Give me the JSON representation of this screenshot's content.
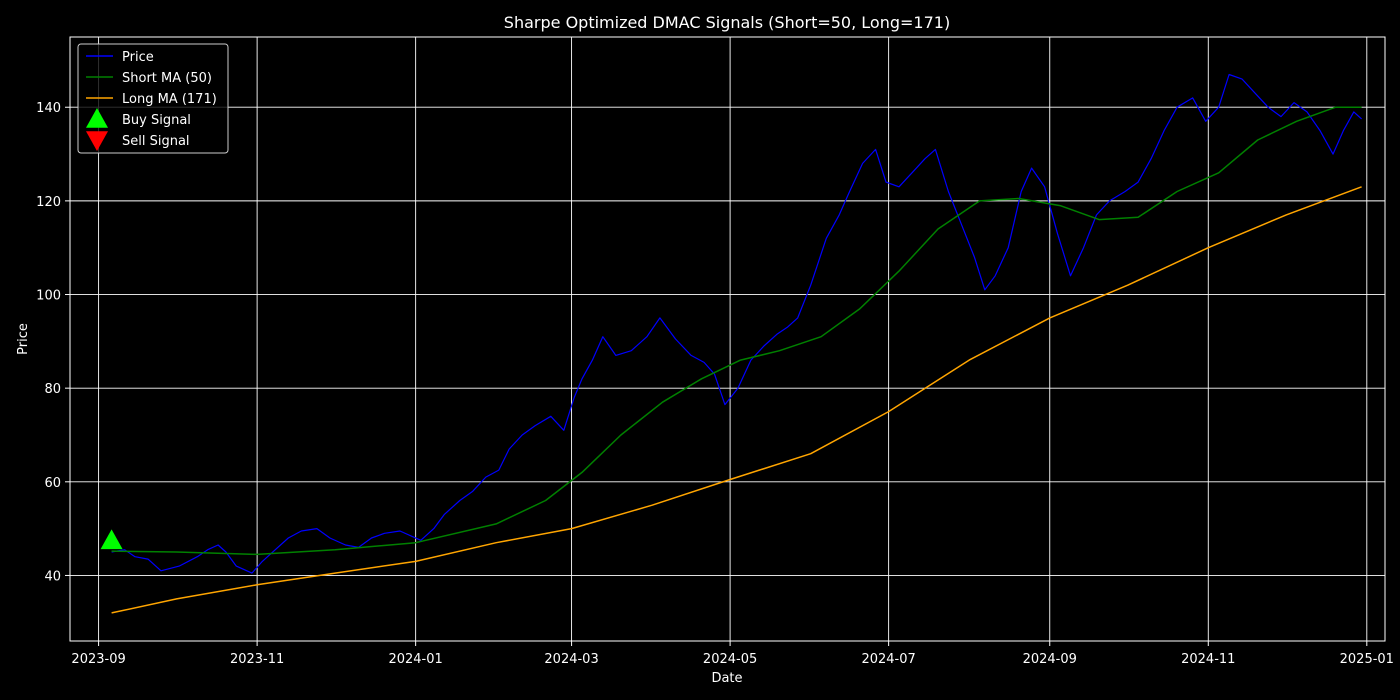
{
  "chart_data": {
    "type": "line",
    "title": "Sharpe Optimized DMAC Signals (Short=50, Long=171)",
    "xlabel": "Date",
    "ylabel": "Price",
    "x_range": [
      "2023-08-21",
      "2025-01-08"
    ],
    "ylim": [
      26,
      155
    ],
    "x_ticks": [
      "2023-09",
      "2023-11",
      "2024-01",
      "2024-03",
      "2024-05",
      "2024-07",
      "2024-09",
      "2024-11",
      "2025-01"
    ],
    "y_ticks": [
      40,
      60,
      80,
      100,
      120,
      140
    ],
    "grid": true,
    "legend_position": "top-left",
    "series": [
      {
        "name": "Price",
        "color": "#0000ff",
        "points": [
          [
            "2023-09-06",
            45
          ],
          [
            "2023-09-11",
            45.5
          ],
          [
            "2023-09-15",
            44
          ],
          [
            "2023-09-20",
            43.5
          ],
          [
            "2023-09-25",
            41
          ],
          [
            "2023-10-02",
            42
          ],
          [
            "2023-10-09",
            44
          ],
          [
            "2023-10-13",
            45.5
          ],
          [
            "2023-10-17",
            46.5
          ],
          [
            "2023-10-20",
            45
          ],
          [
            "2023-10-24",
            42
          ],
          [
            "2023-10-30",
            40.5
          ],
          [
            "2023-11-03",
            43
          ],
          [
            "2023-11-08",
            45.5
          ],
          [
            "2023-11-13",
            48
          ],
          [
            "2023-11-18",
            49.5
          ],
          [
            "2023-11-24",
            50
          ],
          [
            "2023-11-29",
            48
          ],
          [
            "2023-12-05",
            46.5
          ],
          [
            "2023-12-10",
            46
          ],
          [
            "2023-12-15",
            48
          ],
          [
            "2023-12-20",
            49
          ],
          [
            "2023-12-26",
            49.5
          ],
          [
            "2024-01-03",
            47.5
          ],
          [
            "2024-01-08",
            50
          ],
          [
            "2024-01-12",
            53
          ],
          [
            "2024-01-18",
            56
          ],
          [
            "2024-01-23",
            58
          ],
          [
            "2024-01-28",
            61
          ],
          [
            "2024-02-02",
            62.5
          ],
          [
            "2024-02-06",
            67
          ],
          [
            "2024-02-11",
            70
          ],
          [
            "2024-02-16",
            72
          ],
          [
            "2024-02-22",
            74
          ],
          [
            "2024-02-27",
            71
          ],
          [
            "2024-03-02",
            78
          ],
          [
            "2024-03-05",
            82
          ],
          [
            "2024-03-09",
            86
          ],
          [
            "2024-03-13",
            91
          ],
          [
            "2024-03-18",
            87
          ],
          [
            "2024-03-24",
            88
          ],
          [
            "2024-03-30",
            91
          ],
          [
            "2024-04-04",
            95
          ],
          [
            "2024-04-10",
            90.5
          ],
          [
            "2024-04-16",
            87
          ],
          [
            "2024-04-21",
            85.5
          ],
          [
            "2024-04-25",
            83
          ],
          [
            "2024-04-29",
            76.5
          ],
          [
            "2024-05-04",
            80
          ],
          [
            "2024-05-09",
            86
          ],
          [
            "2024-05-14",
            89
          ],
          [
            "2024-05-19",
            91.5
          ],
          [
            "2024-05-23",
            93
          ],
          [
            "2024-05-27",
            95
          ],
          [
            "2024-06-01",
            102
          ],
          [
            "2024-06-07",
            112
          ],
          [
            "2024-06-12",
            117
          ],
          [
            "2024-06-16",
            122
          ],
          [
            "2024-06-21",
            128
          ],
          [
            "2024-06-26",
            131
          ],
          [
            "2024-06-30",
            124
          ],
          [
            "2024-07-05",
            123
          ],
          [
            "2024-07-10",
            126
          ],
          [
            "2024-07-15",
            129
          ],
          [
            "2024-07-19",
            131
          ],
          [
            "2024-07-24",
            122
          ],
          [
            "2024-07-29",
            115
          ],
          [
            "2024-08-03",
            108
          ],
          [
            "2024-08-07",
            101
          ],
          [
            "2024-08-11",
            104
          ],
          [
            "2024-08-16",
            110
          ],
          [
            "2024-08-21",
            122
          ],
          [
            "2024-08-25",
            127
          ],
          [
            "2024-08-30",
            123
          ],
          [
            "2024-09-04",
            113
          ],
          [
            "2024-09-09",
            104
          ],
          [
            "2024-09-14",
            110
          ],
          [
            "2024-09-19",
            117
          ],
          [
            "2024-09-24",
            120
          ],
          [
            "2024-09-30",
            122
          ],
          [
            "2024-10-05",
            124
          ],
          [
            "2024-10-10",
            129
          ],
          [
            "2024-10-15",
            135
          ],
          [
            "2024-10-20",
            140
          ],
          [
            "2024-10-26",
            142
          ],
          [
            "2024-10-31",
            137
          ],
          [
            "2024-11-05",
            140
          ],
          [
            "2024-11-09",
            147
          ],
          [
            "2024-11-14",
            146
          ],
          [
            "2024-11-19",
            143
          ],
          [
            "2024-11-24",
            140
          ],
          [
            "2024-11-29",
            138
          ],
          [
            "2024-12-04",
            141
          ],
          [
            "2024-12-09",
            139
          ],
          [
            "2024-12-14",
            135
          ],
          [
            "2024-12-19",
            130
          ],
          [
            "2024-12-23",
            135
          ],
          [
            "2024-12-27",
            139
          ],
          [
            "2024-12-30",
            137.5
          ]
        ]
      },
      {
        "name": "Short MA (50)",
        "color": "#008000",
        "points": [
          [
            "2023-09-06",
            45.2
          ],
          [
            "2023-10-01",
            45
          ],
          [
            "2023-11-01",
            44.5
          ],
          [
            "2023-12-01",
            45.5
          ],
          [
            "2024-01-01",
            47
          ],
          [
            "2024-02-01",
            51
          ],
          [
            "2024-02-20",
            56
          ],
          [
            "2024-03-05",
            62
          ],
          [
            "2024-03-20",
            70
          ],
          [
            "2024-04-05",
            77
          ],
          [
            "2024-04-20",
            82
          ],
          [
            "2024-05-05",
            86
          ],
          [
            "2024-05-20",
            88
          ],
          [
            "2024-06-05",
            91
          ],
          [
            "2024-06-20",
            97
          ],
          [
            "2024-07-05",
            105
          ],
          [
            "2024-07-20",
            114
          ],
          [
            "2024-08-05",
            120
          ],
          [
            "2024-08-20",
            120.5
          ],
          [
            "2024-09-05",
            119
          ],
          [
            "2024-09-20",
            116
          ],
          [
            "2024-10-05",
            116.5
          ],
          [
            "2024-10-20",
            122
          ],
          [
            "2024-11-05",
            126
          ],
          [
            "2024-11-20",
            133
          ],
          [
            "2024-12-05",
            137
          ],
          [
            "2024-12-20",
            140
          ],
          [
            "2024-12-30",
            140
          ]
        ]
      },
      {
        "name": "Long MA (171)",
        "color": "#ffa500",
        "points": [
          [
            "2023-09-06",
            32
          ],
          [
            "2023-10-01",
            35
          ],
          [
            "2023-11-01",
            38
          ],
          [
            "2023-12-01",
            40.5
          ],
          [
            "2024-01-01",
            43
          ],
          [
            "2024-02-01",
            47
          ],
          [
            "2024-03-01",
            50
          ],
          [
            "2024-04-01",
            55
          ],
          [
            "2024-05-01",
            60.5
          ],
          [
            "2024-06-01",
            66
          ],
          [
            "2024-07-01",
            75
          ],
          [
            "2024-08-01",
            86
          ],
          [
            "2024-09-01",
            95
          ],
          [
            "2024-10-01",
            102
          ],
          [
            "2024-11-01",
            110
          ],
          [
            "2024-12-01",
            117
          ],
          [
            "2024-12-30",
            123
          ]
        ]
      }
    ],
    "markers": [
      {
        "name": "Buy Signal",
        "color": "#00ff00",
        "shape": "triangle-up",
        "points": [
          [
            "2023-09-06",
            47.5
          ]
        ]
      },
      {
        "name": "Sell Signal",
        "color": "#ff0000",
        "shape": "triangle-down",
        "points": []
      }
    ],
    "legend": [
      {
        "label": "Price",
        "kind": "line",
        "color": "#0000ff"
      },
      {
        "label": "Short MA (50)",
        "kind": "line",
        "color": "#008000"
      },
      {
        "label": "Long MA (171)",
        "kind": "line",
        "color": "#ffa500"
      },
      {
        "label": "Buy Signal",
        "kind": "triangle-up",
        "color": "#00ff00"
      },
      {
        "label": "Sell Signal",
        "kind": "triangle-down",
        "color": "#ff0000"
      }
    ]
  }
}
